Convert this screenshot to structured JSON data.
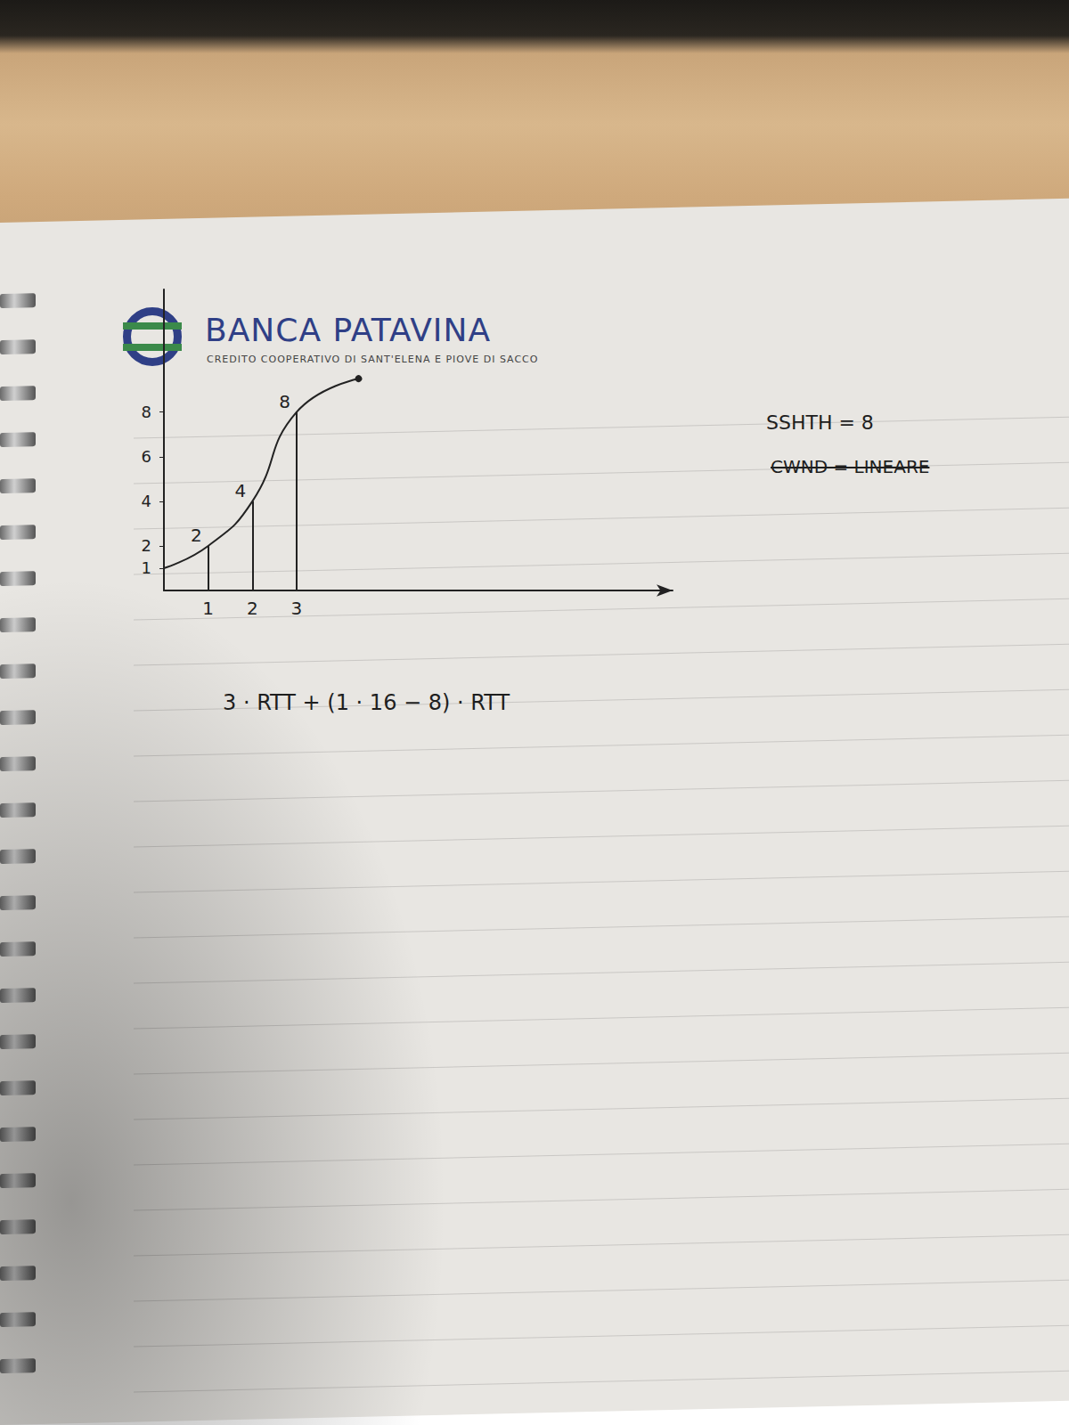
{
  "chart_data": {
    "type": "line",
    "x": [
      0,
      1,
      2,
      3,
      4.4
    ],
    "values": [
      1,
      2,
      4,
      8,
      9.5
    ],
    "value_labels": [
      null,
      "2",
      "4",
      "8",
      null
    ],
    "data_labels": true,
    "color": "#222222",
    "xlim": [
      0,
      11.5
    ],
    "xticks": [
      1,
      2,
      3
    ],
    "ylim": [
      0,
      13.5
    ],
    "yticks": [
      1,
      2,
      4,
      6,
      8
    ],
    "grid": false,
    "logo_title": "BANCA PATAVINA",
    "logo_subtitle": "CREDITO COOPERATIVO DI SANT'ELENA E PIOVE DI SACCO",
    "notes": [
      "SSHTH = 8",
      "CWND = LINEARE"
    ],
    "formula": "3 · RTT + (1 · 16 − 8) · RTT"
  }
}
